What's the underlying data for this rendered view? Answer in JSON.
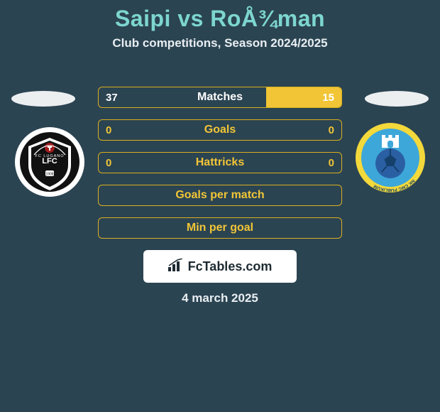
{
  "header": {
    "title": "Saipi vs RoÅ¾man",
    "title_color": "#7dd6d0",
    "subtitle": "Club competitions, Season 2024/2025"
  },
  "colors": {
    "background": "#2b4452",
    "accent": "#f1c536",
    "accent_dark": "#d9ae1f",
    "text": "#ffffff"
  },
  "stats": {
    "rows": [
      {
        "label": "Matches",
        "left": "37",
        "right": "15",
        "right_bar_pct": 31,
        "bar_color": "#f1c536",
        "border_color": "#d9ae1f",
        "text_color": "#ffffff"
      },
      {
        "label": "Goals",
        "left": "0",
        "right": "0",
        "right_bar_pct": 0,
        "bar_color": "#f1c536",
        "border_color": "#d9ae1f",
        "text_color": "#f1c536"
      },
      {
        "label": "Hattricks",
        "left": "0",
        "right": "0",
        "right_bar_pct": 0,
        "bar_color": "#f1c536",
        "border_color": "#d9ae1f",
        "text_color": "#f1c536"
      },
      {
        "label": "Goals per match",
        "left": "",
        "right": "",
        "right_bar_pct": 0,
        "bar_color": "#f1c536",
        "border_color": "#d9ae1f",
        "text_color": "#f1c536"
      },
      {
        "label": "Min per goal",
        "left": "",
        "right": "",
        "right_bar_pct": 0,
        "bar_color": "#f1c536",
        "border_color": "#d9ae1f",
        "text_color": "#f1c536"
      }
    ]
  },
  "footer": {
    "brand": "FcTables.com",
    "date": "4 march 2025"
  },
  "badges": {
    "left_name": "FC Lugano",
    "right_name": "NK CMC Publikum"
  }
}
